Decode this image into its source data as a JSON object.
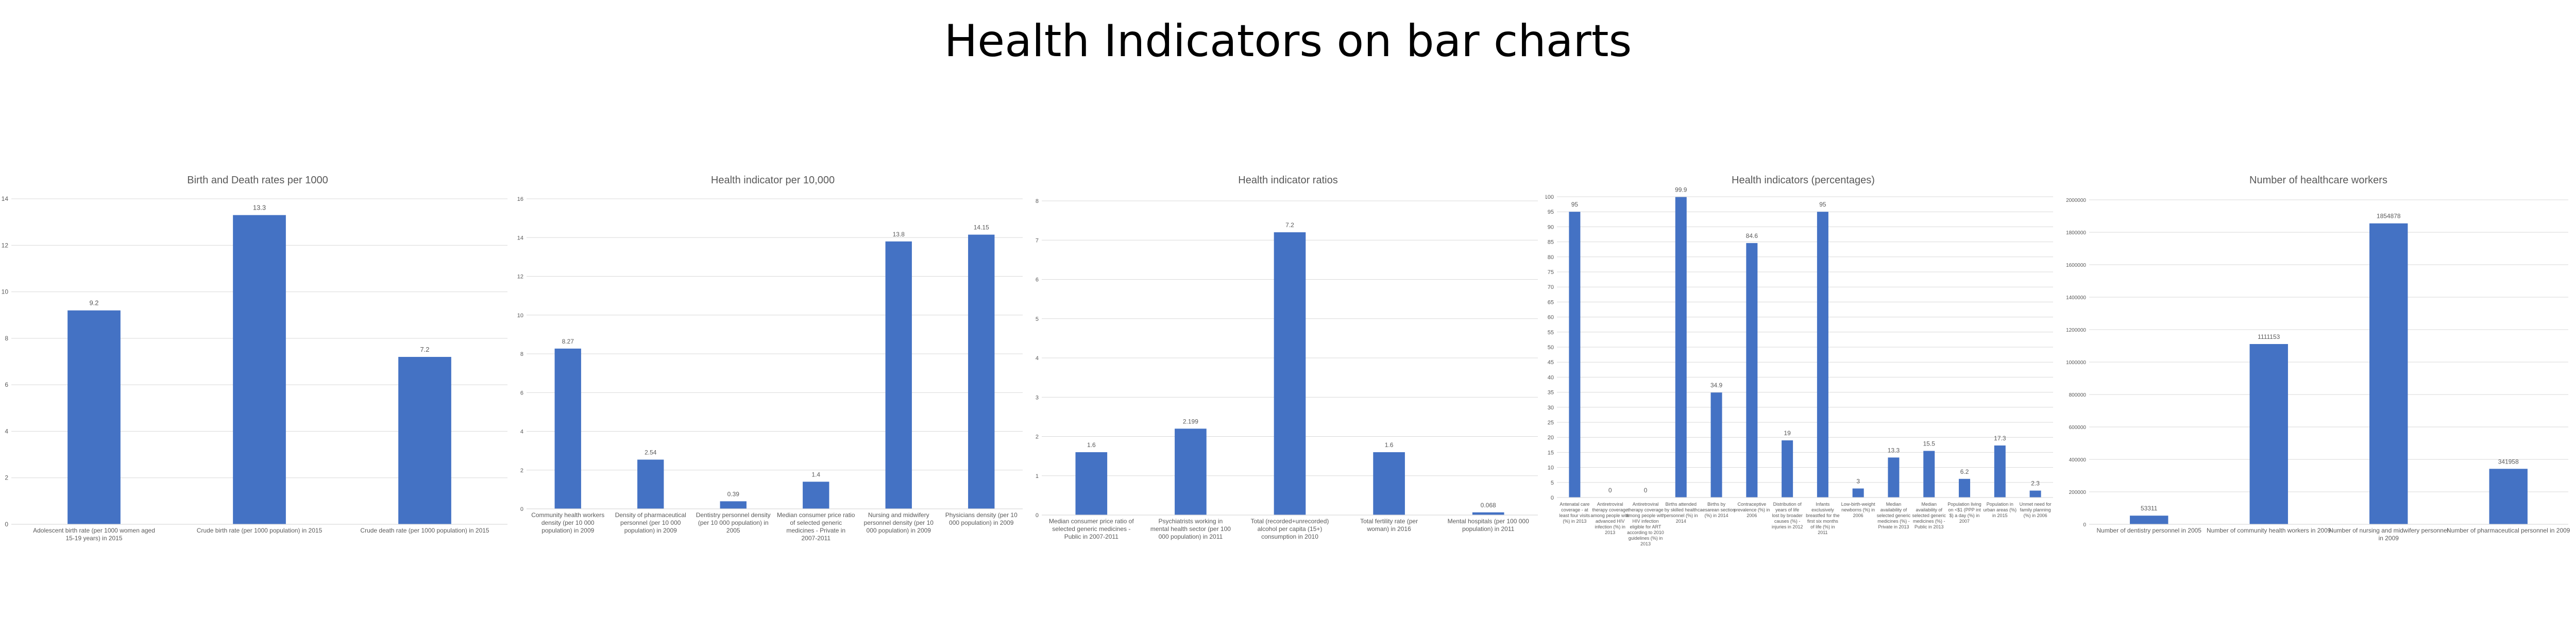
{
  "page": {
    "title": "Health Indicators on bar charts",
    "colors": {
      "bar": "#4472C4",
      "grid": "#D9D9D9",
      "text": "#595959",
      "title": "#595959"
    }
  },
  "chart_data": [
    {
      "type": "bar",
      "title": "Birth and Death rates per 1000",
      "categories": [
        "Adolescent birth rate (per 1000 women aged 15-19 years) in 2015",
        "Crude birth rate (per 1000 population) in 2015",
        "Crude death rate (per 1000 population) in 2015"
      ],
      "values": [
        9.2,
        13.3,
        7.2
      ],
      "value_labels": [
        "9.2",
        "13.3",
        "7.2"
      ],
      "ylim": [
        0,
        14
      ],
      "yticks": [
        0,
        2,
        4,
        6,
        8,
        10,
        12,
        14
      ],
      "ytick_labels": [
        "0",
        "2",
        "4",
        "6",
        "8",
        "10",
        "12",
        "14"
      ],
      "grid": true
    },
    {
      "type": "bar",
      "title": "Health indicator per 10,000",
      "categories": [
        "Community health workers density (per 10 000 population) in 2009",
        "Density of pharmaceutical personnel (per 10 000 population) in 2009",
        "Dentistry personnel density (per 10 000 population) in 2005",
        "Median consumer price ratio of selected generic medicines - Private in 2007-2011",
        "Nursing and midwifery personnel density (per 10 000 population) in 2009",
        "Physicians density (per 10 000 population) in 2009"
      ],
      "values": [
        8.27,
        2.54,
        0.39,
        1.4,
        13.8,
        14.15
      ],
      "value_labels": [
        "8.27",
        "2.54",
        "0.39",
        "1.4",
        "13.8",
        "14.15"
      ],
      "ylim": [
        0,
        16
      ],
      "yticks": [
        0,
        2,
        4,
        6,
        8,
        10,
        12,
        14,
        16
      ],
      "ytick_labels": [
        "0",
        "2",
        "4",
        "6",
        "8",
        "10",
        "12",
        "14",
        "16"
      ],
      "grid": true
    },
    {
      "type": "bar",
      "title": "Health indicator ratios",
      "categories": [
        "Median consumer price ratio of selected generic medicines - Public in 2007-2011",
        "Psychiatrists working in mental health sector (per 100 000 population) in 2011",
        "Total (recorded+unrecorded) alcohol per capita (15+) consumption in 2010",
        "Total fertility rate (per woman) in 2016",
        "Mental hospitals (per 100 000 population) in 2011"
      ],
      "values": [
        1.6,
        2.199,
        7.2,
        1.6,
        0.068
      ],
      "value_labels": [
        "1.6",
        "2.199",
        "7.2",
        "1.6",
        "0.068"
      ],
      "ylim": [
        0,
        8
      ],
      "yticks": [
        0,
        1,
        2,
        3,
        4,
        5,
        6,
        7,
        8
      ],
      "ytick_labels": [
        "0",
        "1",
        "2",
        "3",
        "4",
        "5",
        "6",
        "7",
        "8"
      ],
      "grid": true
    },
    {
      "type": "bar",
      "title": "Health indicators (percentages)",
      "categories": [
        "Antenatal care coverage - at least four visits (%) in 2013",
        "Antiretroviral therapy coverage among people with advanced HIV infection (%) in 2013",
        "Antiretroviral therapy coverage among people with HIV infection eligible for ART according to 2010 guidelines (%) in 2013",
        "Births attended by skilled health personnel (%) in 2014",
        "Births by caesarean section (%) in 2014",
        "Contraceptive prevalence (%) in 2006",
        "Distribution of years of life lost by broader causes (%) - injuries in 2012",
        "Infants exclusively breastfed for the first six months of life (%) in 2011",
        "Low-birth-weight newborns (%) in 2006",
        "Median availability of selected generic medicines (%) - Private in 2013",
        "Median availability of selected generic medicines (%) - Public in 2013",
        "Population living on <$1 (PPP int $) a day (%) in 2007",
        "Population in urban areas (%) in 2015",
        "Unmet need for family planning (%) in 2006"
      ],
      "values": [
        95,
        0,
        0,
        99.9,
        34.9,
        84.6,
        19,
        95,
        3,
        13.3,
        15.5,
        6.2,
        17.3,
        2.3
      ],
      "value_labels": [
        "95",
        "0",
        "0",
        "99.9",
        "34.9",
        "84.6",
        "19",
        "95",
        "3",
        "13.3",
        "15.5",
        "6.2",
        "17.3",
        "2.3"
      ],
      "ylim": [
        0,
        100
      ],
      "yticks": [
        0,
        5,
        10,
        15,
        20,
        25,
        30,
        35,
        40,
        45,
        50,
        55,
        60,
        65,
        70,
        75,
        80,
        85,
        90,
        95,
        100
      ],
      "ytick_labels": [
        "0",
        "5",
        "10",
        "15",
        "20",
        "25",
        "30",
        "35",
        "40",
        "45",
        "50",
        "55",
        "60",
        "65",
        "70",
        "75",
        "80",
        "85",
        "90",
        "95",
        "100"
      ],
      "grid": true
    },
    {
      "type": "bar",
      "title": "Number of healthcare workers",
      "categories": [
        "Number of dentistry personnel in 2005",
        "Number of community health workers in 2009",
        "Number of nursing and midwifery personnel in 2009",
        "Number of pharmaceutical personnel in 2009"
      ],
      "values": [
        53311,
        1111153,
        1854878,
        341958
      ],
      "value_labels": [
        "53311",
        "1111153",
        "1854878",
        "341958"
      ],
      "ylim": [
        0,
        2000000
      ],
      "yticks": [
        0,
        200000,
        400000,
        600000,
        800000,
        1000000,
        1200000,
        1400000,
        1600000,
        1800000,
        2000000
      ],
      "ytick_labels": [
        "0",
        "200000",
        "400000",
        "600000",
        "800000",
        "1000000",
        "1200000",
        "1400000",
        "1600000",
        "1800000",
        "2000000"
      ],
      "grid": true
    }
  ]
}
